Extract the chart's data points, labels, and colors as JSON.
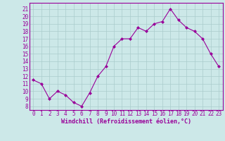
{
  "x": [
    0,
    1,
    2,
    3,
    4,
    5,
    6,
    7,
    8,
    9,
    10,
    11,
    12,
    13,
    14,
    15,
    16,
    17,
    18,
    19,
    20,
    21,
    22,
    23
  ],
  "y": [
    11.5,
    11.0,
    9.0,
    10.0,
    9.5,
    8.5,
    8.0,
    9.8,
    12.0,
    13.3,
    16.0,
    17.0,
    17.0,
    18.5,
    18.0,
    19.0,
    19.3,
    21.0,
    19.5,
    18.5,
    18.0,
    17.0,
    15.0,
    13.3
  ],
  "line_color": "#990099",
  "marker": "D",
  "marker_size": 2.0,
  "bg_color": "#cce8e8",
  "grid_color": "#aacccc",
  "xlabel": "Windchill (Refroidissement éolien,°C)",
  "ylabel_ticks": [
    8,
    9,
    10,
    11,
    12,
    13,
    14,
    15,
    16,
    17,
    18,
    19,
    20,
    21
  ],
  "ylim": [
    7.5,
    21.8
  ],
  "xlim": [
    -0.5,
    23.5
  ],
  "tick_fontsize": 5.5,
  "xlabel_fontsize": 6.0
}
